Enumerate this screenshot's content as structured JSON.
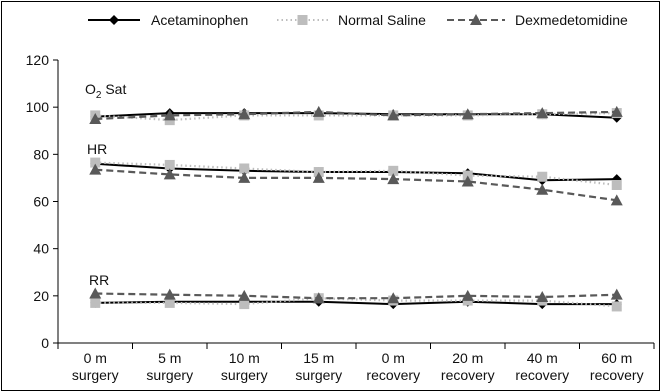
{
  "chart_data": {
    "type": "line",
    "categories": [
      [
        "0 m",
        "surgery"
      ],
      [
        "5 m",
        "surgery"
      ],
      [
        "10 m",
        "surgery"
      ],
      [
        "15 m",
        "surgery"
      ],
      [
        "0 m",
        "recovery"
      ],
      [
        "20 m",
        "recovery"
      ],
      [
        "40 m",
        "recovery"
      ],
      [
        "60 m",
        "recovery"
      ]
    ],
    "ylim": [
      0,
      120
    ],
    "yticks": [
      0,
      20,
      40,
      60,
      80,
      100,
      120
    ],
    "grid": false,
    "legend_position": "top",
    "annotations": {
      "o2sat": {
        "text": "O",
        "sub": "2",
        "rest": " Sat"
      },
      "hr": "HR",
      "rr": "RR"
    },
    "series": [
      {
        "name": "Acetaminophen",
        "color": "#000000",
        "line_style": "solid",
        "marker": "diamond",
        "groups": {
          "o2sat": [
            96,
            97.5,
            97.5,
            97.5,
            97,
            97,
            97,
            95.5
          ],
          "hr": [
            76,
            74,
            73,
            72.5,
            72.5,
            72,
            69,
            69.5
          ],
          "rr": [
            17,
            17.5,
            17.5,
            17.5,
            16.5,
            17.5,
            16.5,
            16.5
          ]
        }
      },
      {
        "name": "Normal Saline",
        "color": "#bdbdbd",
        "line_style": "dotted",
        "marker": "square",
        "groups": {
          "o2sat": [
            96.5,
            94.5,
            96.5,
            96.5,
            96.5,
            96.5,
            97,
            97.5
          ],
          "hr": [
            76.5,
            75.5,
            74,
            72.5,
            73,
            71,
            70.5,
            67
          ],
          "rr": [
            17,
            17,
            16.5,
            19,
            18,
            18,
            18,
            15.5
          ]
        }
      },
      {
        "name": "Dexmedetomidine",
        "color": "#595959",
        "line_style": "dashed",
        "marker": "triangle",
        "groups": {
          "o2sat": [
            95,
            96.5,
            97,
            98,
            96.5,
            97,
            97.5,
            98
          ],
          "hr": [
            73.5,
            71.5,
            70,
            70,
            69.5,
            68.5,
            65,
            60.5
          ],
          "rr": [
            21,
            20.5,
            20,
            19,
            19,
            20,
            19.5,
            20.5
          ]
        }
      }
    ]
  }
}
